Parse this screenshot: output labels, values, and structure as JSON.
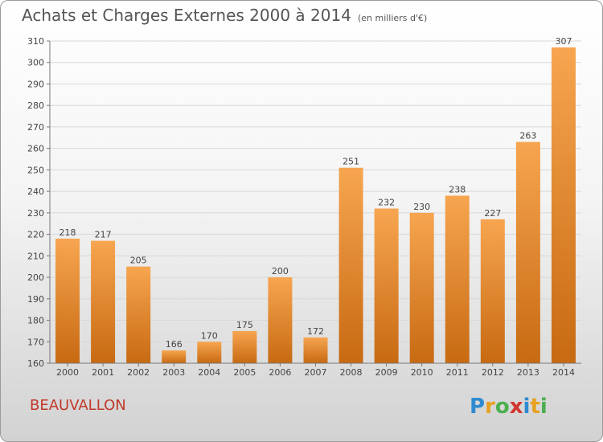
{
  "title": "Achats et Charges Externes 2000 à 2014",
  "unit": "(en milliers d'€)",
  "place": "BEAUVALLON",
  "logo": "Proxiti",
  "colors": {
    "bar_top": "#f7a550",
    "bar_bottom": "#c76a12",
    "grid": "#d8d8d8",
    "text": "#444444"
  },
  "chart_data": {
    "type": "bar",
    "categories": [
      "2000",
      "2001",
      "2002",
      "2003",
      "2004",
      "2005",
      "2006",
      "2007",
      "2008",
      "2009",
      "2010",
      "2011",
      "2012",
      "2013",
      "2014"
    ],
    "values": [
      218,
      217,
      205,
      166,
      170,
      175,
      200,
      172,
      251,
      232,
      230,
      238,
      227,
      263,
      307
    ],
    "ylim": [
      160,
      310
    ],
    "yticks": [
      160,
      170,
      180,
      190,
      200,
      210,
      220,
      230,
      240,
      250,
      260,
      270,
      280,
      290,
      300,
      310
    ],
    "grid": true,
    "data_labels": true
  }
}
